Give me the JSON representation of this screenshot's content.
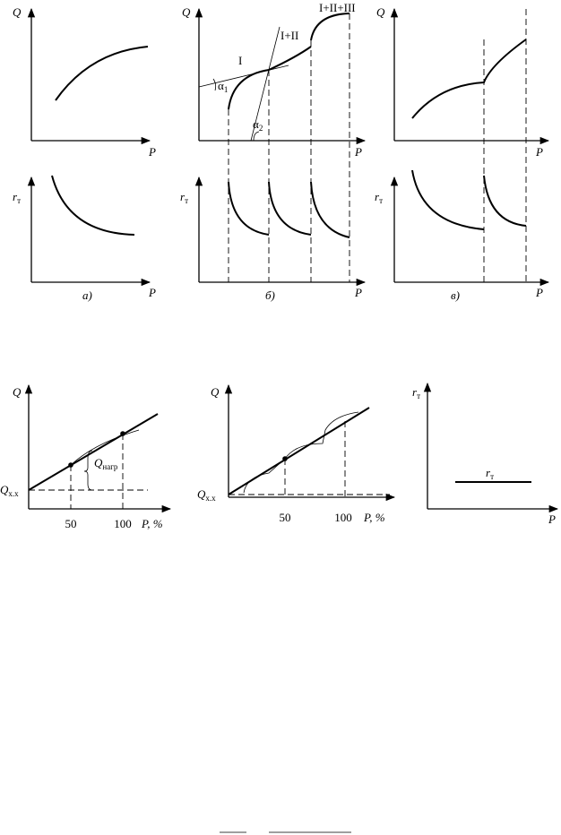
{
  "figure_a": {
    "q_axis": "Q",
    "p_axis": "P",
    "r_axis": {
      "symbol": "r",
      "subscript": "т"
    },
    "caption": "а)"
  },
  "figure_b": {
    "q_axis": "Q",
    "p_axis": "P",
    "r_axis": {
      "symbol": "r",
      "subscript": "т"
    },
    "caption": "б)",
    "curve_labels": [
      "I",
      "I+II",
      "I+II+III"
    ],
    "angle_1": {
      "symbol": "α",
      "subscript": "1"
    },
    "angle_2": {
      "symbol": "α",
      "subscript": "2"
    }
  },
  "figure_c": {
    "q_axis": "Q",
    "p_axis": "P",
    "r_axis": {
      "symbol": "r",
      "subscript": "т"
    },
    "caption": "в)"
  },
  "figure_d": {
    "q_axis": "Q",
    "p_axis": "P, %",
    "ticks": [
      "50",
      "100"
    ],
    "intercept": {
      "symbol": "Q",
      "subscript": "х.х"
    },
    "load": {
      "symbol": "Q",
      "subscript": "нагр"
    }
  },
  "figure_e": {
    "q_axis": "Q",
    "p_axis": "P, %",
    "ticks": [
      "50",
      "100"
    ],
    "intercept": {
      "symbol": "Q",
      "subscript": "х.х"
    }
  },
  "figure_f": {
    "r_axis": {
      "symbol": "r",
      "subscript": "т"
    },
    "p_axis": "P",
    "line_label": {
      "symbol": "r",
      "subscript": "т"
    }
  }
}
